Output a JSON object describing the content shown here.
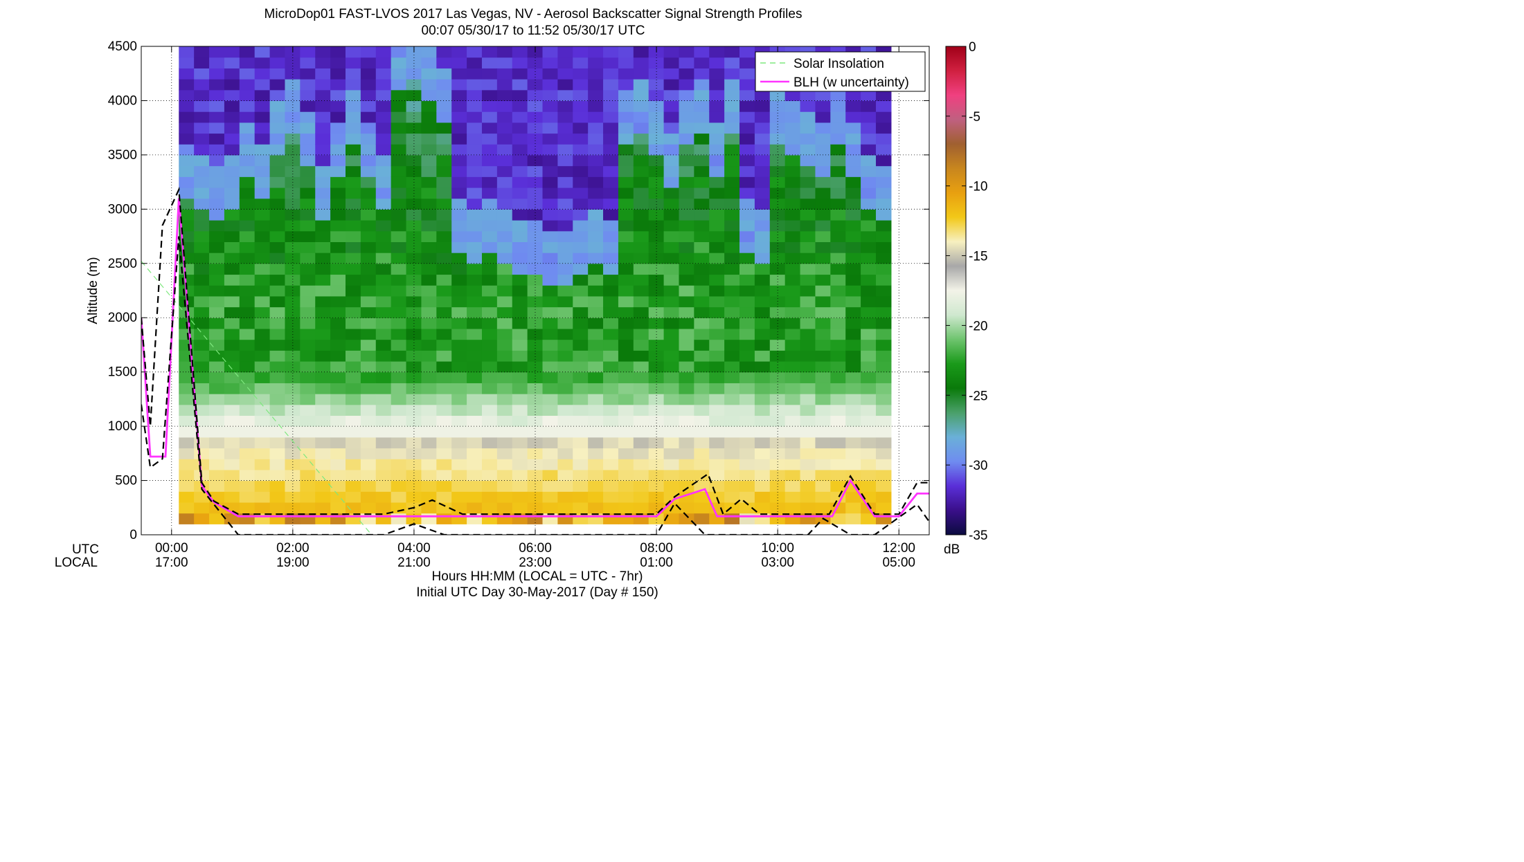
{
  "chart_data": {
    "type": "heatmap",
    "title": "MicroDop01 FAST-LVOS 2017 Las Vegas, NV - Aerosol Backscatter Signal Strength Profiles",
    "subtitle": "00:07 05/30/17 to 11:52 05/30/17  UTC",
    "ylabel": "Altitude (m)",
    "xlabel": "Hours HH:MM  (LOCAL = UTC - 7hr)",
    "footer": "Initial UTC Day 30-May-2017 (Day # 150)",
    "row_labels": {
      "utc": "UTC",
      "local": "LOCAL"
    },
    "xlim": [
      -0.5,
      12.5
    ],
    "ylim": [
      0,
      4500
    ],
    "grid": true,
    "x_ticks": [
      {
        "value": 0,
        "utc": "00:00",
        "local": "17:00"
      },
      {
        "value": 2,
        "utc": "02:00",
        "local": "19:00"
      },
      {
        "value": 4,
        "utc": "04:00",
        "local": "21:00"
      },
      {
        "value": 6,
        "utc": "06:00",
        "local": "23:00"
      },
      {
        "value": 8,
        "utc": "08:00",
        "local": "01:00"
      },
      {
        "value": 10,
        "utc": "10:00",
        "local": "03:00"
      },
      {
        "value": 12,
        "utc": "12:00",
        "local": "05:00"
      }
    ],
    "y_ticks": [
      "0",
      "500",
      "1000",
      "1500",
      "2000",
      "2500",
      "3000",
      "3500",
      "4000",
      "4500"
    ],
    "colorbar": {
      "unit": "dB",
      "range": [
        -35,
        0
      ],
      "ticks": [
        "0",
        "-5",
        "-10",
        "-15",
        "-20",
        "-25",
        "-30",
        "-35"
      ],
      "colors": [
        "#0b0b3f",
        "#3a0f8a",
        "#5a2fd8",
        "#6f8cf0",
        "#6ab0d8",
        "#4aa06a",
        "#0a7a0a",
        "#1a9a1a",
        "#6ec46e",
        "#cfe8cf",
        "#f3f3e8",
        "#a8a8a8",
        "#f7f0c0",
        "#f2c818",
        "#e8a010",
        "#c8861e",
        "#a06030",
        "#c06080",
        "#f04080",
        "#d02040",
        "#a00018"
      ]
    },
    "heatmap_grid": {
      "time_range_hours": [
        0.12,
        11.87
      ],
      "time_bins": 47,
      "altitude_bin_m": 100,
      "value_unit": "dB"
    },
    "legend": {
      "placement": "top-right",
      "entries": [
        {
          "label": "Solar Insolation",
          "color": "#7ee87e",
          "style": "dashed"
        },
        {
          "label": "BLH (w uncertainty)",
          "color": "#ff33ff",
          "style": "solid"
        }
      ]
    },
    "series": [
      {
        "name": "BLH (w uncertainty)",
        "x": [
          -0.5,
          -0.35,
          -0.1,
          0.12,
          0.5,
          0.7,
          1.1,
          1.5,
          2.0,
          2.5,
          3.0,
          3.5,
          4.0,
          4.5,
          5.0,
          5.5,
          6.0,
          6.5,
          7.0,
          7.5,
          8.0,
          8.3,
          8.8,
          9.0,
          9.5,
          10.0,
          10.5,
          10.9,
          11.2,
          11.6,
          12.0,
          12.3,
          12.5
        ],
        "y": [
          2000,
          720,
          720,
          3100,
          450,
          300,
          170,
          170,
          170,
          170,
          170,
          170,
          170,
          170,
          170,
          170,
          170,
          170,
          170,
          170,
          170,
          330,
          420,
          170,
          170,
          170,
          170,
          170,
          500,
          170,
          170,
          380,
          380
        ]
      },
      {
        "name": "BLH upper bound",
        "x": [
          -0.5,
          -0.35,
          -0.15,
          0.12,
          0.5,
          0.7,
          1.1,
          1.5,
          2.0,
          2.5,
          3.0,
          3.5,
          4.0,
          4.3,
          4.8,
          5.5,
          6.0,
          6.5,
          7.0,
          7.5,
          8.0,
          8.3,
          8.85,
          9.1,
          9.4,
          9.7,
          10.0,
          10.5,
          10.85,
          11.2,
          11.6,
          12.0,
          12.3,
          12.5
        ],
        "y": [
          2000,
          1000,
          2850,
          3180,
          480,
          310,
          190,
          190,
          190,
          190,
          190,
          190,
          250,
          320,
          190,
          190,
          190,
          190,
          190,
          190,
          190,
          350,
          560,
          190,
          330,
          190,
          190,
          190,
          190,
          540,
          190,
          190,
          480,
          480
        ]
      },
      {
        "name": "BLH lower bound",
        "x": [
          -0.5,
          -0.35,
          -0.15,
          0.12,
          0.5,
          0.7,
          1.1,
          1.5,
          2.0,
          2.5,
          3.0,
          3.5,
          4.0,
          4.5,
          5.0,
          5.5,
          6.0,
          6.5,
          7.0,
          7.5,
          8.0,
          8.3,
          8.8,
          9.1,
          9.5,
          10.0,
          10.5,
          10.75,
          11.2,
          11.6,
          12.0,
          12.3,
          12.5
        ],
        "y": [
          1200,
          620,
          700,
          2750,
          420,
          280,
          0,
          0,
          0,
          0,
          0,
          0,
          100,
          0,
          0,
          0,
          0,
          0,
          0,
          0,
          0,
          290,
          0,
          0,
          0,
          0,
          0,
          150,
          0,
          0,
          160,
          280,
          120
        ]
      },
      {
        "name": "Solar Insolation",
        "x": [
          -0.5,
          3.3
        ],
        "y": [
          2520,
          0
        ]
      }
    ]
  }
}
